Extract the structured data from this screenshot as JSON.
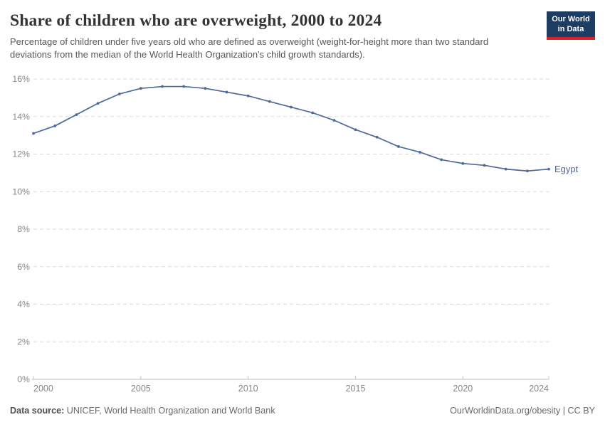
{
  "header": {
    "title": "Share of children who are overweight, 2000 to 2024",
    "subtitle": "Percentage of children under five years old who are defined as overweight (weight-for-height more than two standard deviations from the median of the World Health Organization's child growth standards).",
    "logo": {
      "line1": "Our World",
      "line2": "in Data"
    }
  },
  "chart_data": {
    "type": "line",
    "title": "Share of children who are overweight, 2000 to 2024",
    "x": [
      2000,
      2001,
      2002,
      2003,
      2004,
      2005,
      2006,
      2007,
      2008,
      2009,
      2010,
      2011,
      2012,
      2013,
      2014,
      2015,
      2016,
      2017,
      2018,
      2019,
      2020,
      2021,
      2022,
      2023,
      2024
    ],
    "series": [
      {
        "name": "Egypt",
        "color": "#4C6A9C",
        "values": [
          13.1,
          13.5,
          14.1,
          14.7,
          15.2,
          15.5,
          15.6,
          15.6,
          15.5,
          15.3,
          15.1,
          14.8,
          14.5,
          14.2,
          13.8,
          13.3,
          12.9,
          12.4,
          12.1,
          11.7,
          11.5,
          11.4,
          11.2,
          11.1,
          11.2
        ]
      }
    ],
    "xlabel": "",
    "ylabel": "",
    "ylim": [
      0,
      16
    ],
    "ytick_step": 2,
    "ytick_suffix": "%",
    "xticks": [
      2000,
      2005,
      2010,
      2015,
      2020,
      2024
    ],
    "grid": "horizontal-dashed",
    "legend_position": "end-of-line-label",
    "end_label": "Egypt"
  },
  "footer": {
    "source_label": "Data source:",
    "source_text": " UNICEF, World Health Organization and World Bank",
    "credit": "OurWorldinData.org/obesity | CC BY"
  },
  "colors": {
    "line": "#4C6A9C",
    "end_label": "#4C6A9C",
    "logo_bg": "#1d3d63",
    "logo_accent": "#d8232a",
    "gridline": "#dadada",
    "axis_line": "#c2c2c2",
    "tick_label": "#878787",
    "title_text": "#333333",
    "subtitle_text": "#575757"
  }
}
